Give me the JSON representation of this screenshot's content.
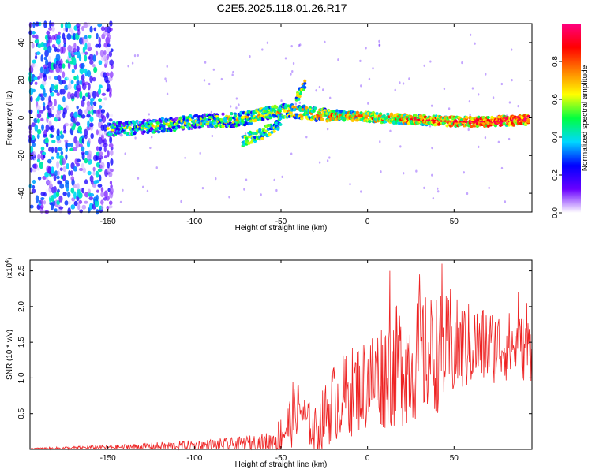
{
  "title": "C2E5.2025.118.01.26.R17",
  "chart_data": [
    {
      "type": "heatmap",
      "xlabel": "Height of straight line (km)",
      "ylabel": "Frequency (Hz)",
      "xlim": [
        -195,
        95
      ],
      "ylim": [
        -50,
        50
      ],
      "x_ticks": [
        -150,
        -100,
        -50,
        0,
        50
      ],
      "y_ticks": [
        -40,
        -20,
        0,
        20,
        40
      ],
      "colorbar": {
        "label": "Normalized spectral amplitude",
        "range": [
          0,
          1
        ],
        "ticks": [
          "0.0",
          "0.2",
          "0.4",
          "0.6",
          "0.8"
        ],
        "colormap": [
          "#ffffff",
          "#6a00ff",
          "#0000ff",
          "#00d8ff",
          "#00ff40",
          "#ffff00",
          "#ff8000",
          "#ff0000",
          "#ff0080"
        ]
      },
      "ridge_center_hz": [
        {
          "x": -145,
          "y": -6
        },
        {
          "x": -120,
          "y": -4
        },
        {
          "x": -100,
          "y": -2
        },
        {
          "x": -75,
          "y": -1
        },
        {
          "x": -60,
          "y": 2
        },
        {
          "x": -45,
          "y": 4
        },
        {
          "x": -30,
          "y": 2
        },
        {
          "x": -10,
          "y": 1
        },
        {
          "x": 10,
          "y": 0
        },
        {
          "x": 30,
          "y": -1
        },
        {
          "x": 50,
          "y": -2
        },
        {
          "x": 70,
          "y": -2
        },
        {
          "x": 93,
          "y": -1
        }
      ],
      "branch_hz": [
        {
          "x": -72,
          "y": -12
        },
        {
          "x": -60,
          "y": -8
        },
        {
          "x": -50,
          "y": -2
        }
      ],
      "spur_hz": [
        {
          "x": -40,
          "y": 12
        },
        {
          "x": -36,
          "y": 18
        }
      ]
    },
    {
      "type": "line",
      "xlabel": "Height of straight line (km)",
      "ylabel": "SNR (10 * v/v)",
      "y_multiplier": "(x10",
      "y_multiplier_exp": "4",
      "xlim": [
        -195,
        95
      ],
      "ylim": [
        0,
        2.65
      ],
      "x_ticks": [
        -150,
        -100,
        -50,
        0,
        50
      ],
      "y_ticks": [
        0.5,
        1.0,
        1.5,
        2.0,
        2.5
      ],
      "series": [
        {
          "color": "#ee2222",
          "envelope": [
            {
              "x": -195,
              "mean": 0.01,
              "amp": 0.01
            },
            {
              "x": -150,
              "mean": 0.03,
              "amp": 0.03
            },
            {
              "x": -100,
              "mean": 0.05,
              "amp": 0.08
            },
            {
              "x": -75,
              "mean": 0.07,
              "amp": 0.1
            },
            {
              "x": -55,
              "mean": 0.1,
              "amp": 0.15
            },
            {
              "x": -45,
              "mean": 0.35,
              "amp": 0.4
            },
            {
              "x": -40,
              "mean": 0.6,
              "amp": 0.35
            },
            {
              "x": -35,
              "mean": 0.4,
              "amp": 0.3
            },
            {
              "x": -30,
              "mean": 0.25,
              "amp": 0.35
            },
            {
              "x": -20,
              "mean": 0.65,
              "amp": 0.55
            },
            {
              "x": 0,
              "mean": 0.95,
              "amp": 0.7
            },
            {
              "x": 20,
              "mean": 1.2,
              "amp": 0.9
            },
            {
              "x": 40,
              "mean": 1.35,
              "amp": 0.85
            },
            {
              "x": 60,
              "mean": 1.45,
              "amp": 0.6
            },
            {
              "x": 80,
              "mean": 1.45,
              "amp": 0.5
            },
            {
              "x": 95,
              "mean": 1.4,
              "amp": 0.45
            }
          ],
          "peaks": [
            {
              "x": 13,
              "y": 2.5
            },
            {
              "x": 30,
              "y": 2.45
            },
            {
              "x": 43,
              "y": 2.6
            },
            {
              "x": 48,
              "y": 2.25
            },
            {
              "x": 87,
              "y": 2.2
            },
            {
              "x": 92,
              "y": 2.05
            },
            {
              "x": -43,
              "y": 0.95
            },
            {
              "x": -20,
              "y": 1.1
            }
          ]
        }
      ]
    }
  ]
}
